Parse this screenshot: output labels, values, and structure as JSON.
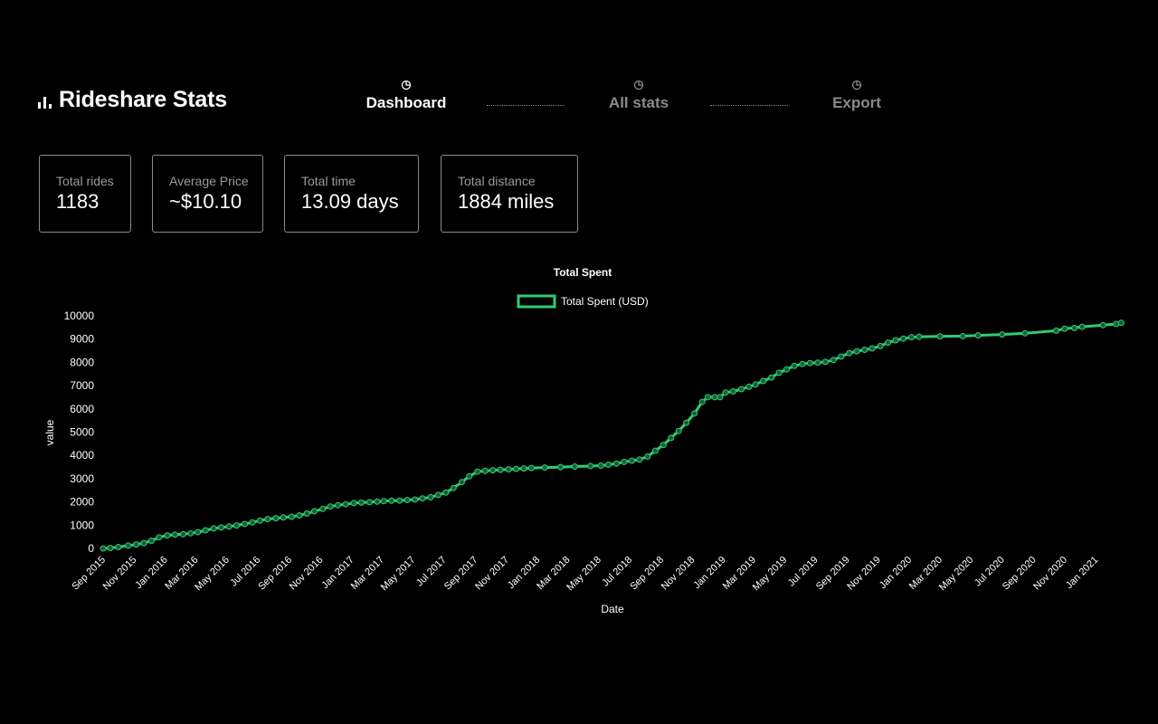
{
  "app": {
    "title": "Rideshare Stats",
    "logo_icon": "bar-chart-icon"
  },
  "nav": {
    "steps": [
      {
        "label": "Dashboard",
        "icon": "pie-chart-icon",
        "active": true
      },
      {
        "label": "All stats",
        "icon": "pie-chart-icon",
        "active": false
      },
      {
        "label": "Export",
        "icon": "pie-chart-icon",
        "active": false
      }
    ]
  },
  "stats": [
    {
      "label": "Total rides",
      "value": "1183"
    },
    {
      "label": "Average Price",
      "value": "~$10.10"
    },
    {
      "label": "Total time",
      "value": "13.09 days"
    },
    {
      "label": "Total distance",
      "value": "1884 miles"
    }
  ],
  "colors": {
    "accent": "#2ecc71",
    "muted": "#8a8a8a",
    "background": "#000000"
  },
  "chart_data": {
    "type": "line",
    "title": "Total Spent",
    "xlabel": "Date",
    "ylabel": "value",
    "ylim": [
      0,
      10000
    ],
    "yticks": [
      0,
      1000,
      2000,
      3000,
      4000,
      5000,
      6000,
      7000,
      8000,
      9000,
      10000
    ],
    "xticks": [
      "Sep 2015",
      "Nov 2015",
      "Jan 2016",
      "Mar 2016",
      "May 2016",
      "Jul 2016",
      "Sep 2016",
      "Nov 2016",
      "Jan 2017",
      "Mar 2017",
      "May 2017",
      "Jul 2017",
      "Sep 2017",
      "Nov 2017",
      "Jan 2018",
      "Mar 2018",
      "May 2018",
      "Jul 2018",
      "Sep 2018",
      "Nov 2018",
      "Jan 2019",
      "Mar 2019",
      "May 2019",
      "Jul 2019",
      "Sep 2019",
      "Nov 2019",
      "Jan 2020",
      "Mar 2020",
      "May 2020",
      "Jul 2020",
      "Sep 2020",
      "Nov 2020",
      "Jan 2021"
    ],
    "legend": "top-center",
    "grid": false,
    "series": [
      {
        "name": "Total Spent (USD)",
        "color": "#2ecc71",
        "points": [
          [
            "2015-09-01",
            0
          ],
          [
            "2015-09-15",
            20
          ],
          [
            "2015-10-01",
            60
          ],
          [
            "2015-10-20",
            120
          ],
          [
            "2015-11-05",
            170
          ],
          [
            "2015-11-20",
            230
          ],
          [
            "2015-12-05",
            330
          ],
          [
            "2015-12-20",
            480
          ],
          [
            "2016-01-05",
            560
          ],
          [
            "2016-01-20",
            590
          ],
          [
            "2016-02-05",
            610
          ],
          [
            "2016-02-20",
            650
          ],
          [
            "2016-03-05",
            700
          ],
          [
            "2016-03-20",
            780
          ],
          [
            "2016-04-05",
            860
          ],
          [
            "2016-04-20",
            900
          ],
          [
            "2016-05-05",
            940
          ],
          [
            "2016-05-20",
            990
          ],
          [
            "2016-06-05",
            1050
          ],
          [
            "2016-06-20",
            1120
          ],
          [
            "2016-07-05",
            1200
          ],
          [
            "2016-07-20",
            1260
          ],
          [
            "2016-08-05",
            1300
          ],
          [
            "2016-08-20",
            1330
          ],
          [
            "2016-09-05",
            1360
          ],
          [
            "2016-09-20",
            1420
          ],
          [
            "2016-10-05",
            1500
          ],
          [
            "2016-10-20",
            1600
          ],
          [
            "2016-11-05",
            1700
          ],
          [
            "2016-11-20",
            1800
          ],
          [
            "2016-12-05",
            1860
          ],
          [
            "2016-12-20",
            1900
          ],
          [
            "2017-01-05",
            1950
          ],
          [
            "2017-01-20",
            1970
          ],
          [
            "2017-02-05",
            1990
          ],
          [
            "2017-02-20",
            2010
          ],
          [
            "2017-03-05",
            2030
          ],
          [
            "2017-03-20",
            2050
          ],
          [
            "2017-04-05",
            2060
          ],
          [
            "2017-04-20",
            2080
          ],
          [
            "2017-05-05",
            2100
          ],
          [
            "2017-05-20",
            2150
          ],
          [
            "2017-06-05",
            2200
          ],
          [
            "2017-06-20",
            2300
          ],
          [
            "2017-07-05",
            2400
          ],
          [
            "2017-07-20",
            2600
          ],
          [
            "2017-08-05",
            2850
          ],
          [
            "2017-08-20",
            3100
          ],
          [
            "2017-09-05",
            3300
          ],
          [
            "2017-09-20",
            3340
          ],
          [
            "2017-10-05",
            3360
          ],
          [
            "2017-10-20",
            3380
          ],
          [
            "2017-11-05",
            3400
          ],
          [
            "2017-11-20",
            3420
          ],
          [
            "2017-12-05",
            3440
          ],
          [
            "2017-12-20",
            3460
          ],
          [
            "2018-01-15",
            3480
          ],
          [
            "2018-02-15",
            3500
          ],
          [
            "2018-03-15",
            3520
          ],
          [
            "2018-04-15",
            3540
          ],
          [
            "2018-05-05",
            3560
          ],
          [
            "2018-05-20",
            3600
          ],
          [
            "2018-06-05",
            3650
          ],
          [
            "2018-06-20",
            3720
          ],
          [
            "2018-07-05",
            3770
          ],
          [
            "2018-07-20",
            3820
          ],
          [
            "2018-08-05",
            3950
          ],
          [
            "2018-08-20",
            4200
          ],
          [
            "2018-09-05",
            4450
          ],
          [
            "2018-09-20",
            4750
          ],
          [
            "2018-10-05",
            5050
          ],
          [
            "2018-10-20",
            5400
          ],
          [
            "2018-11-05",
            5800
          ],
          [
            "2018-11-20",
            6300
          ],
          [
            "2018-12-01",
            6500
          ],
          [
            "2018-12-15",
            6500
          ],
          [
            "2018-12-25",
            6500
          ],
          [
            "2019-01-05",
            6700
          ],
          [
            "2019-01-20",
            6750
          ],
          [
            "2019-02-05",
            6850
          ],
          [
            "2019-02-20",
            6950
          ],
          [
            "2019-03-05",
            7050
          ],
          [
            "2019-03-20",
            7200
          ],
          [
            "2019-04-05",
            7350
          ],
          [
            "2019-04-20",
            7550
          ],
          [
            "2019-05-05",
            7700
          ],
          [
            "2019-05-20",
            7850
          ],
          [
            "2019-06-05",
            7930
          ],
          [
            "2019-06-20",
            7970
          ],
          [
            "2019-07-05",
            7990
          ],
          [
            "2019-07-20",
            8020
          ],
          [
            "2019-08-05",
            8100
          ],
          [
            "2019-08-20",
            8250
          ],
          [
            "2019-09-05",
            8400
          ],
          [
            "2019-09-20",
            8480
          ],
          [
            "2019-10-05",
            8540
          ],
          [
            "2019-10-20",
            8600
          ],
          [
            "2019-11-05",
            8700
          ],
          [
            "2019-11-20",
            8850
          ],
          [
            "2019-12-05",
            8950
          ],
          [
            "2019-12-20",
            9020
          ],
          [
            "2020-01-05",
            9080
          ],
          [
            "2020-01-20",
            9100
          ],
          [
            "2020-03-01",
            9120
          ],
          [
            "2020-04-15",
            9130
          ],
          [
            "2020-05-15",
            9160
          ],
          [
            "2020-07-01",
            9200
          ],
          [
            "2020-08-15",
            9250
          ],
          [
            "2020-10-15",
            9360
          ],
          [
            "2020-11-01",
            9450
          ],
          [
            "2020-11-20",
            9480
          ],
          [
            "2020-12-05",
            9530
          ],
          [
            "2021-01-15",
            9600
          ],
          [
            "2021-02-10",
            9650
          ],
          [
            "2021-02-20",
            9700
          ]
        ]
      }
    ]
  }
}
